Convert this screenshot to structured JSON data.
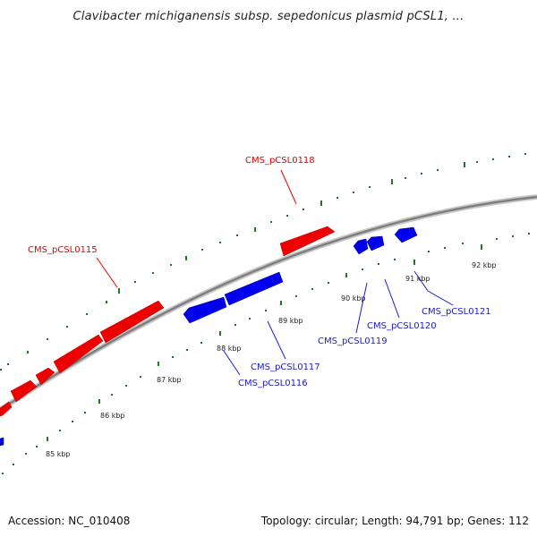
{
  "title": "Clavibacter michiganensis subsp. sepedonicus plasmid pCSL1, ...",
  "footer": {
    "accession": "Accession: NC_010408",
    "summary": "Topology: circular; Length: 94,791 bp; Genes: 112"
  },
  "colors": {
    "forward_strand": "#ff0000",
    "reverse_strand": "#0000ee",
    "backbone": "#8a8a8a",
    "ticks": "#1e7a1e"
  },
  "tick_labels": [
    "85 kbp",
    "86 kbp",
    "87 kbp",
    "88 kbp",
    "89 kbp",
    "90 kbp",
    "91 kbp",
    "92 kbp"
  ],
  "gene_labels": {
    "forward": [
      "CMS_pCSL0115",
      "CMS_pCSL0118"
    ],
    "reverse": [
      "CMS_pCSL0116",
      "CMS_pCSL0117",
      "CMS_pCSL0119",
      "CMS_pCSL0120",
      "CMS_pCSL0121"
    ]
  }
}
